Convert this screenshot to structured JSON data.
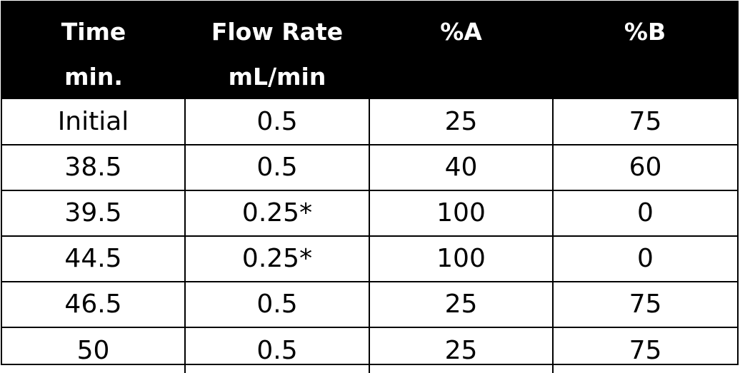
{
  "table": {
    "headers": [
      {
        "line1": "Time",
        "line2": "min."
      },
      {
        "line1": "Flow Rate",
        "line2": "mL/min"
      },
      {
        "line1": "%A",
        "line2": ""
      },
      {
        "line1": "%B",
        "line2": ""
      }
    ],
    "rows": [
      [
        "Initial",
        "0.5",
        "25",
        "75"
      ],
      [
        "38.5",
        "0.5",
        "40",
        "60"
      ],
      [
        "39.5",
        "0.25*",
        "100",
        "0"
      ],
      [
        "44.5",
        "0.25*",
        "100",
        "0"
      ],
      [
        "46.5",
        "0.5",
        "25",
        "75"
      ],
      [
        "50",
        "0.5",
        "25",
        "75"
      ]
    ]
  },
  "colors": {
    "header_background": "#000000",
    "header_text": "#ffffff",
    "grid_lines": "#000000",
    "body_text": "#000000"
  }
}
